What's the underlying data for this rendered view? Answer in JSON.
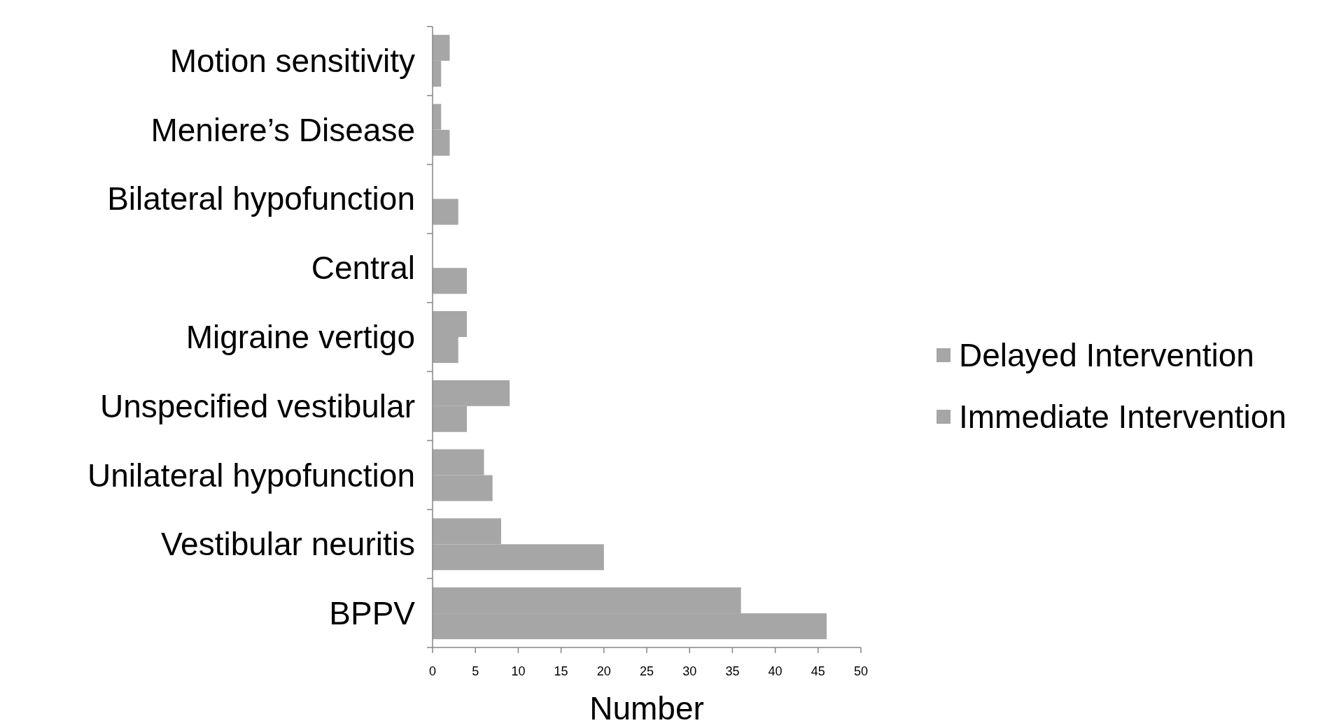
{
  "chart_data": {
    "type": "bar",
    "orientation": "horizontal",
    "xlabel": "Number",
    "categories": [
      "Motion sensitivity",
      "Meniere’s Disease",
      "Bilateral hypofunction",
      "Central",
      "Migraine vertigo",
      "Unspecified vestibular",
      "Unilateral hypofunction",
      "Vestibular neuritis",
      "BPPV"
    ],
    "series": [
      {
        "name": "Delayed Intervention",
        "color": "#a6a6a6",
        "values": [
          2,
          1,
          0,
          0,
          4,
          9,
          6,
          8,
          36
        ]
      },
      {
        "name": "Immediate Intervention",
        "color": "#a6a6a6",
        "values": [
          1,
          2,
          3,
          4,
          3,
          4,
          7,
          20,
          46
        ]
      }
    ],
    "xlim": [
      0,
      50
    ],
    "xticks": [
      0,
      5,
      10,
      15,
      20,
      25,
      30,
      35,
      40,
      45,
      50
    ],
    "legend": "right",
    "grid": false
  }
}
